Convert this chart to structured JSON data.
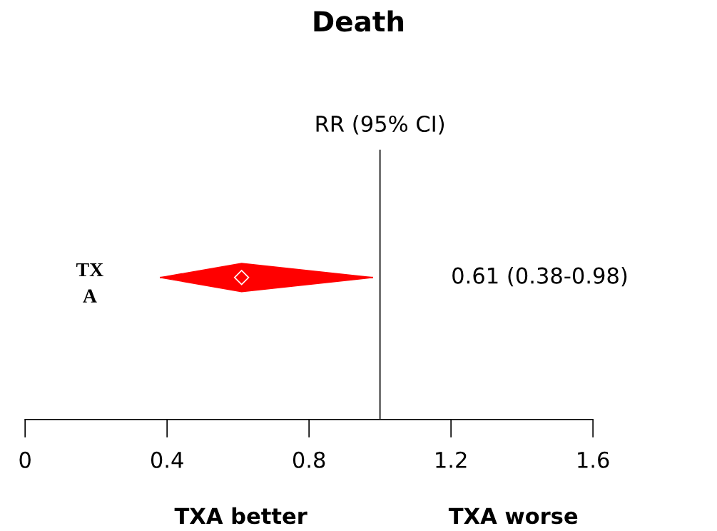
{
  "chart_data": {
    "type": "scatter",
    "orientation": "horizontal",
    "title": "Death",
    "categories": [
      "TX\nA"
    ],
    "values": [
      0.61
    ],
    "errors": [
      [
        0.38,
        0.98
      ]
    ],
    "color": "#ff0000",
    "marker": "diamond",
    "xlim": [
      0,
      1.6
    ],
    "xticks": [
      0,
      0.4,
      0.8,
      1.2,
      1.6
    ],
    "ref_lines": [
      {
        "axis": "x",
        "value": 1,
        "label": "RR (95% CI)",
        "color": "#000000"
      }
    ],
    "annotations": [
      "0.61 (0.38-0.98)",
      "TXA better",
      "TXA worse"
    ],
    "tick_labels": "x",
    "grid": false,
    "legend": false
  }
}
